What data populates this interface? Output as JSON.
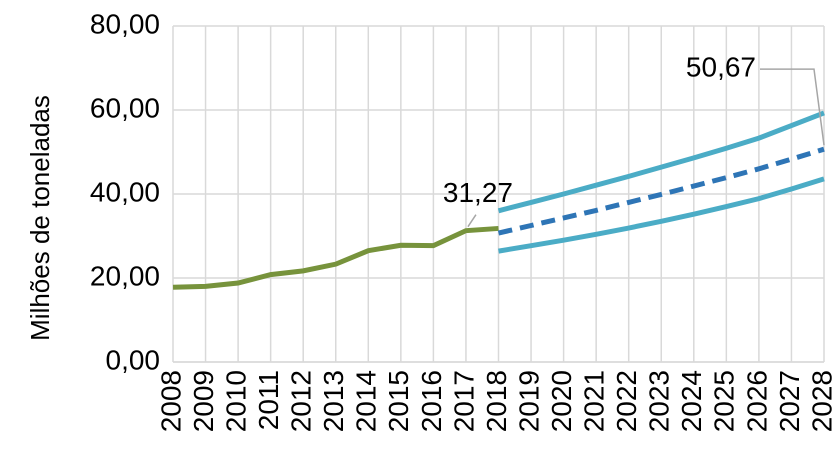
{
  "chart_data": {
    "type": "line",
    "y_label": "Milhões de toneladas",
    "categories": [
      "2008",
      "2009",
      "2010",
      "2011",
      "2012",
      "2013",
      "2014",
      "2015",
      "2016",
      "2017",
      "2018",
      "2019",
      "2020",
      "2021",
      "2022",
      "2023",
      "2024",
      "2025",
      "2026",
      "2027",
      "2028"
    ],
    "series": [
      {
        "color": "#77933c",
        "style": "solid",
        "values": [
          17.8,
          18.0,
          18.8,
          20.8,
          21.7,
          23.3,
          26.5,
          27.8,
          27.7,
          31.27,
          31.8,
          null,
          null,
          null,
          null,
          null,
          null,
          null,
          null,
          null,
          null
        ],
        "value_labels": [
          null,
          null,
          null,
          null,
          null,
          null,
          null,
          null,
          null,
          "31,27",
          null,
          null,
          null,
          null,
          null,
          null,
          null,
          null,
          null,
          null,
          null
        ]
      },
      {
        "color": "#4bacc6",
        "style": "solid",
        "values": [
          null,
          null,
          null,
          null,
          null,
          null,
          null,
          null,
          null,
          null,
          36.0,
          38.0,
          40.0,
          42.1,
          44.2,
          46.4,
          48.6,
          50.9,
          53.3,
          56.3,
          59.3
        ]
      },
      {
        "color": "#4bacc6",
        "style": "solid",
        "values": [
          null,
          null,
          null,
          null,
          null,
          null,
          null,
          null,
          null,
          null,
          26.4,
          27.7,
          29.0,
          30.4,
          31.9,
          33.5,
          35.2,
          37.0,
          38.9,
          41.2,
          43.6
        ]
      },
      {
        "color": "#2e75b6",
        "style": "dashed",
        "values": [
          null,
          null,
          null,
          null,
          null,
          null,
          null,
          null,
          null,
          null,
          30.7,
          32.5,
          34.3,
          36.1,
          38.0,
          39.9,
          41.9,
          43.9,
          46.0,
          48.3,
          50.67
        ],
        "value_labels": [
          null,
          null,
          null,
          null,
          null,
          null,
          null,
          null,
          null,
          null,
          null,
          null,
          null,
          null,
          null,
          null,
          null,
          null,
          null,
          null,
          "50,67"
        ]
      }
    ],
    "ylim": [
      0,
      80
    ],
    "yticks": [
      {
        "value": 0,
        "label": "0,00"
      },
      {
        "value": 20,
        "label": "20,00"
      },
      {
        "value": 40,
        "label": "40,00"
      },
      {
        "value": 60,
        "label": "60,00"
      },
      {
        "value": 80,
        "label": "80,00"
      }
    ],
    "grid": true
  }
}
